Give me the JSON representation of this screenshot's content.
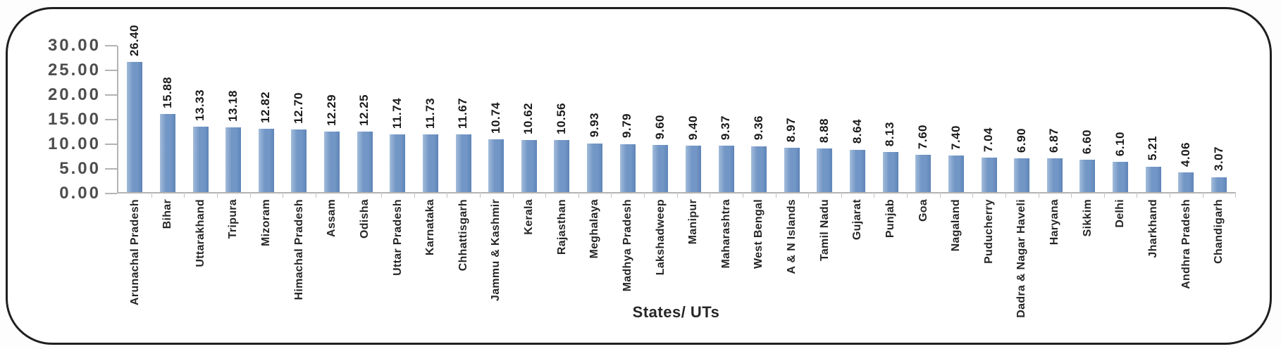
{
  "chart_data": {
    "type": "bar",
    "xlabel": "States/ UTs",
    "ylabel": "",
    "ylim": [
      0,
      30
    ],
    "grid": false,
    "legend": false,
    "y_tick_labels": [
      "30.00",
      "25.00",
      "20.00",
      "15.00",
      "10.00",
      "5.00",
      "0.00"
    ],
    "categories": [
      "Arunachal Pradesh",
      "Bihar",
      "Uttarakhand",
      "Tripura",
      "Mizoram",
      "Himachal Pradesh",
      "Assam",
      "Odisha",
      "Uttar Pradesh",
      "Karnataka",
      "Chhattisgarh",
      "Jammu & Kashmir",
      "Kerala",
      "Rajasthan",
      "Meghalaya",
      "Madhya Pradesh",
      "Lakshadweep",
      "Manipur",
      "Maharashtra",
      "West Bengal",
      "A & N Islands",
      "Tamil Nadu",
      "Gujarat",
      "Punjab",
      "Goa",
      "Nagaland",
      "Puducherry",
      "Dadra & Nagar Haveli",
      "Haryana",
      "Sikkim",
      "Delhi",
      "Jharkhand",
      "Andhra Pradesh",
      "Chandigarh"
    ],
    "values": [
      26.4,
      15.88,
      13.33,
      13.18,
      12.82,
      12.7,
      12.29,
      12.25,
      11.74,
      11.73,
      11.67,
      10.74,
      10.62,
      10.56,
      9.93,
      9.79,
      9.6,
      9.4,
      9.37,
      9.36,
      8.97,
      8.88,
      8.64,
      8.13,
      7.6,
      7.4,
      7.04,
      6.9,
      6.87,
      6.6,
      6.1,
      5.21,
      4.06,
      3.07
    ],
    "value_labels": [
      "26.40",
      "15.88",
      "13.33",
      "13.18",
      "12.82",
      "12.70",
      "12.29",
      "12.25",
      "11.74",
      "11.73",
      "11.67",
      "10.74",
      "10.62",
      "10.56",
      "9.93",
      "9.79",
      "9.60",
      "9.40",
      "9.37",
      "9.36",
      "8.97",
      "8.88",
      "8.64",
      "8.13",
      "7.60",
      "7.40",
      "7.04",
      "6.90",
      "6.87",
      "6.60",
      "6.10",
      "5.21",
      "4.06",
      "3.07"
    ],
    "colors": {
      "bar": "#7296c5",
      "bar_light": "#a3bcdb",
      "bar_dark": "#5e85b8",
      "axis": "#b3b3b3",
      "frame_border": "#1f1f1f",
      "value_label_text": "#1a1a1a",
      "category_label_text": "#262626",
      "y_label_text": "#4d4d4d"
    }
  }
}
